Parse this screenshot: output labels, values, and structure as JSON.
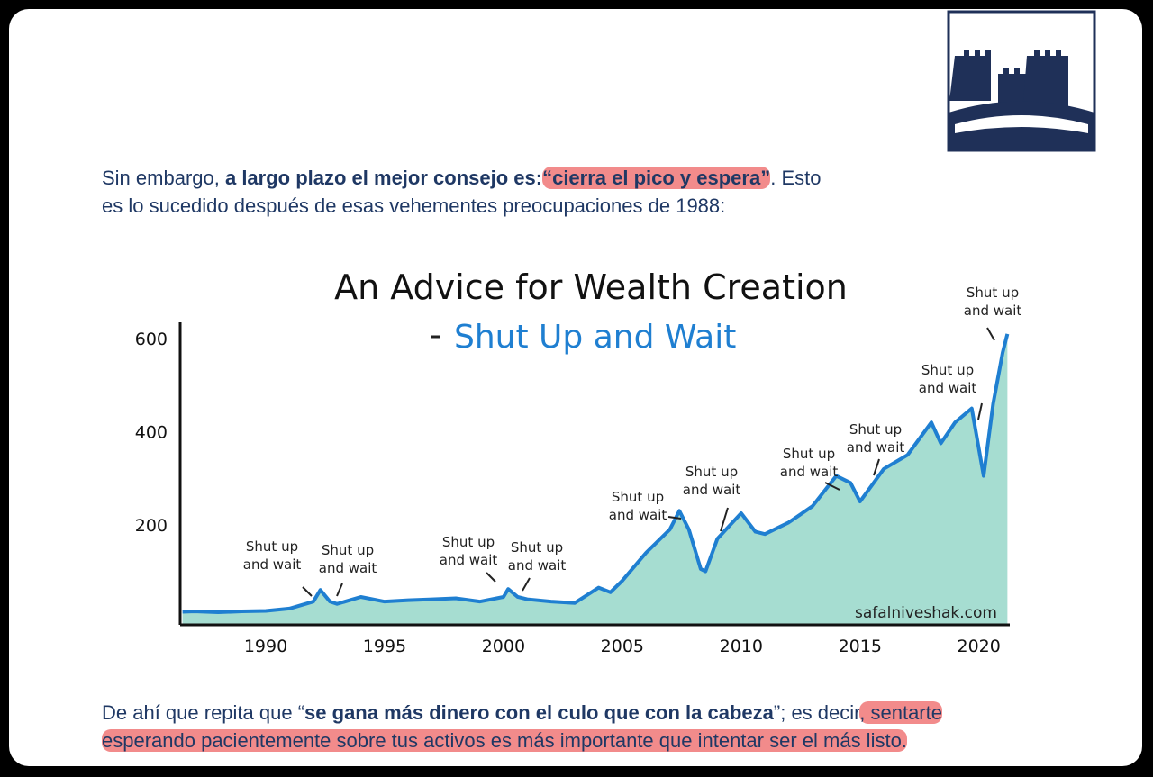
{
  "paragraphs": [
    {
      "lines": [
        [
          {
            "text": "Sin embargo, "
          },
          {
            "text": "a largo plazo el mejor consejo es:",
            "bold": true
          },
          {
            "text": "“cierra el pico y espera”",
            "bold": true,
            "highlight": true
          },
          {
            "text": ". Esto"
          }
        ],
        [
          {
            "text": "es lo sucedido después de esas vehementes preocupaciones de 1988:"
          }
        ]
      ]
    },
    {
      "lines": [
        [
          {
            "text": "De ahí que repita que “"
          },
          {
            "text": "se gana más dinero con el culo que con la cabeza",
            "bold": true
          },
          {
            "text": "”; es decir"
          },
          {
            "text": ", sentarte",
            "highlight": true
          }
        ],
        [
          {
            "text": "esperando pacientemente sobre tus activos es más importante que intentar ser el más listo.",
            "highlight": true
          }
        ]
      ]
    }
  ],
  "chart_data": {
    "type": "area",
    "title": "An Advice for Wealth Creation",
    "subtitle": "Shut Up and Wait",
    "source": "safalniveshak.com",
    "line_color": "#1f7fd1",
    "fill_color": "#a6ddd1",
    "x": [
      1986.5,
      1987,
      1988,
      1989,
      1990,
      1991,
      1992,
      1992.3,
      1992.7,
      1993,
      1994,
      1995,
      1996,
      1997,
      1998,
      1999,
      2000,
      2000.2,
      2000.6,
      2001,
      2002,
      2003,
      2004,
      2004.5,
      2005,
      2006,
      2007,
      2007.4,
      2007.8,
      2008.3,
      2008.5,
      2009,
      2010,
      2010.6,
      2011,
      2012,
      2013,
      2014,
      2014.6,
      2015,
      2016,
      2017,
      2018,
      2018.4,
      2019,
      2019.7,
      2020.2,
      2020.6,
      2021,
      2021.2
    ],
    "values": [
      13,
      14,
      12,
      14,
      15,
      20,
      35,
      60,
      35,
      30,
      45,
      35,
      38,
      40,
      42,
      35,
      45,
      62,
      45,
      40,
      35,
      32,
      65,
      55,
      80,
      140,
      190,
      230,
      190,
      105,
      100,
      170,
      225,
      185,
      180,
      205,
      240,
      305,
      290,
      250,
      320,
      350,
      420,
      375,
      420,
      450,
      305,
      460,
      570,
      610
    ],
    "xlim": [
      1986.4,
      2021.3
    ],
    "xticks": [
      1990,
      1995,
      2000,
      2005,
      2010,
      2015,
      2020
    ],
    "ylim": [
      -15,
      635
    ],
    "yticks": [
      200,
      400,
      600
    ],
    "annotations": [
      [
        "Shut up",
        "and wait"
      ],
      [
        "Shut up",
        "and wait"
      ],
      [
        "Shut up",
        "and wait"
      ],
      [
        "Shut up",
        "and wait"
      ],
      [
        "Shut up",
        "and wait"
      ],
      [
        "Shut up",
        "and wait"
      ],
      [
        "Shut up",
        "and wait"
      ],
      [
        "Shut up",
        "and wait"
      ],
      [
        "Shut up",
        "and wait"
      ],
      [
        "Shut up",
        "and wait"
      ]
    ]
  }
}
